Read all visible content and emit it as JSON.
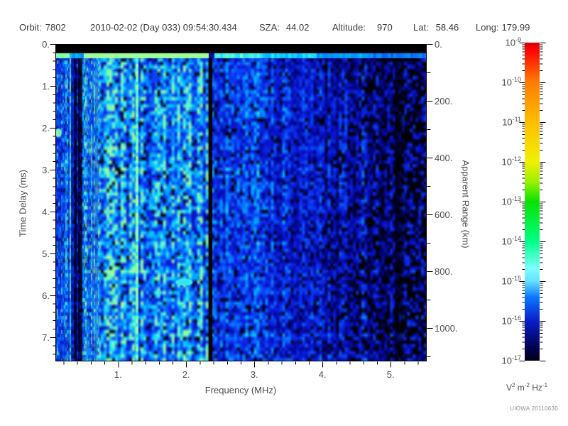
{
  "header": {
    "items": [
      {
        "label": "Orbit:",
        "value": "7802"
      },
      {
        "label": "",
        "value": "2010-02-02 (Day 033) 09:54:30.434"
      },
      {
        "label": "SZA:",
        "value": "44.02"
      },
      {
        "label": "Altitude:",
        "value": "970"
      },
      {
        "label": "Lat:",
        "value": "58.46"
      },
      {
        "label": "Long:",
        "value": "179.99"
      }
    ]
  },
  "watermark": "UIOWA 20110630",
  "chart_data": {
    "type": "heatmap",
    "description": "Radar sounder ionogram: received spectral density vs frequency and time delay",
    "x_axis": {
      "label": "Frequency (MHz)",
      "range_mhz": [
        0.08,
        5.53
      ],
      "tick_values": [
        1,
        2,
        3,
        4,
        5
      ],
      "tick_labels": [
        "1.",
        "2.",
        "3.",
        "4.",
        "5."
      ],
      "minor_step_mhz": 0.2
    },
    "y_axis_left": {
      "label": "Time Delay (ms)",
      "range_ms": [
        0,
        7.58
      ],
      "tick_values": [
        0,
        1,
        2,
        3,
        4,
        5,
        6,
        7
      ],
      "tick_labels": [
        "0.",
        "1.",
        "2.",
        "3.",
        "4.",
        "5.",
        "6.",
        "7."
      ],
      "minor_step_ms": 0.2
    },
    "y_axis_right": {
      "label": "Apparent Range (km)",
      "range_km": [
        0,
        1117
      ],
      "tick_values": [
        0,
        200,
        400,
        600,
        800,
        1000
      ],
      "tick_labels": [
        "0.",
        "200.",
        "400.",
        "600.",
        "800.",
        "1000."
      ],
      "minor_step_km": 100,
      "km_per_ms": 147.4
    },
    "colorbar": {
      "scale": "log10",
      "value_top": "1e-9",
      "value_bottom": "1e-17",
      "exponents": [
        "-9",
        "-10",
        "-11",
        "-12",
        "-13",
        "-14",
        "-15",
        "-16",
        "-17"
      ],
      "mantissa_minor_ticks": [
        2,
        3,
        4,
        5,
        6,
        7,
        8,
        9
      ],
      "unit_parts": [
        [
          "V",
          "2"
        ],
        [
          " m",
          "-2"
        ],
        [
          " Hz",
          "-1"
        ]
      ],
      "gradient": [
        {
          "p": 0,
          "c": "#cd0000"
        },
        {
          "p": 2,
          "c": "#ff0000"
        },
        {
          "p": 12.5,
          "c": "#ff7d00"
        },
        {
          "p": 25,
          "c": "#ffbe00"
        },
        {
          "p": 37.5,
          "c": "#f0f000"
        },
        {
          "p": 44,
          "c": "#96f000"
        },
        {
          "p": 50,
          "c": "#0ae100"
        },
        {
          "p": 62.5,
          "c": "#00ff87"
        },
        {
          "p": 71,
          "c": "#7dffff"
        },
        {
          "p": 75,
          "c": "#64e1ff"
        },
        {
          "p": 80,
          "c": "#0a78ff"
        },
        {
          "p": 87.5,
          "c": "#0a1ec8"
        },
        {
          "p": 96,
          "c": "#000050"
        },
        {
          "p": 100,
          "c": "#000014"
        }
      ]
    },
    "value_colormap": [
      {
        "v": 0.0,
        "c": "#000004"
      },
      {
        "v": 0.08,
        "c": "#00001a"
      },
      {
        "v": 0.18,
        "c": "#000480"
      },
      {
        "v": 0.3,
        "c": "#0a14d2"
      },
      {
        "v": 0.42,
        "c": "#0a3cf5"
      },
      {
        "v": 0.55,
        "c": "#0a78ff"
      },
      {
        "v": 0.68,
        "c": "#00c0ff"
      },
      {
        "v": 0.8,
        "c": "#3cf0f0"
      },
      {
        "v": 0.88,
        "c": "#7dffb4"
      },
      {
        "v": 1.0,
        "c": "#a0ff96"
      }
    ],
    "features": {
      "blanking_band_ms": [
        0,
        0.22
      ],
      "surface_echo_row_ms": [
        0.22,
        0.3
      ],
      "striped_region_mhz": [
        0.08,
        0.72
      ],
      "attenuation_streaks_mhz": [
        0.27,
        0.46
      ],
      "bright_stripe_mhz": 0.285,
      "bright_line_mhz": 1.28,
      "absorption_line_mhz": [
        2.33,
        2.38
      ],
      "dark_column_mhz": [
        5.06,
        5.15
      ],
      "dropout_onset_mhz": 3.8,
      "base_levels": [
        {
          "f": [
            0.08,
            0.27
          ],
          "v": 0.5
        },
        {
          "f": [
            0.27,
            0.46
          ],
          "v": 0.3
        },
        {
          "f": [
            0.46,
            1.0
          ],
          "v": 0.62
        },
        {
          "f": [
            1.0,
            2.33
          ],
          "v": 0.6
        },
        {
          "f": [
            2.33,
            2.38
          ],
          "v": 0.05
        },
        {
          "f": [
            2.38,
            3.1
          ],
          "v": 0.42
        },
        {
          "f": [
            3.1,
            3.9
          ],
          "v": 0.36
        },
        {
          "f": [
            3.9,
            4.7
          ],
          "v": 0.3
        },
        {
          "f": [
            4.7,
            5.53
          ],
          "v": 0.24
        }
      ],
      "blobs": [
        {
          "f_mhz": 0.115,
          "t_ms": 2.12,
          "c": "green"
        },
        {
          "f_mhz": 1.97,
          "t_ms": 5.69,
          "c": "cyan"
        }
      ]
    }
  }
}
